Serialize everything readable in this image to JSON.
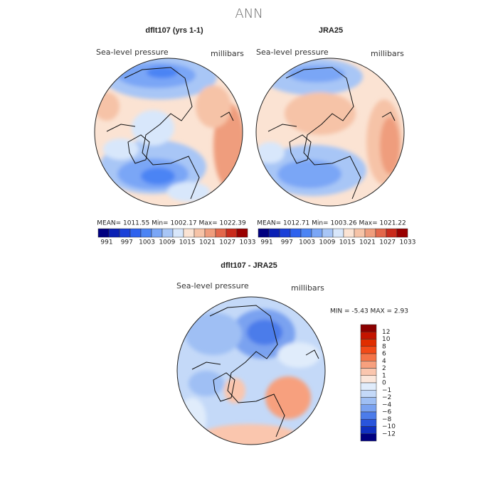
{
  "header": {
    "title": "ANN"
  },
  "panels": [
    {
      "title": "dflt107 (yrs 1-1)",
      "field": "Sea-level pressure",
      "units": "millibars",
      "stats": "MEAN=  1011.55   Min=  1002.17   Max=  1022.39",
      "colorbar": {
        "labels": [
          "991",
          "997",
          "1003",
          "1009",
          "1015",
          "1021",
          "1027",
          "1033"
        ],
        "colors": [
          "#000080",
          "#0a20b4",
          "#1a40d8",
          "#2e62ee",
          "#4c84f4",
          "#7aa6f6",
          "#a8c6f6",
          "#d8e7fb",
          "#fbe3d3",
          "#f6c3a7",
          "#ef9d7d",
          "#e3674b",
          "#c92b1c",
          "#990000"
        ]
      }
    },
    {
      "title": "JRA25",
      "field": "Sea-level pressure",
      "units": "millibars",
      "stats": "MEAN=  1012.71   Min=  1003.26   Max=  1021.22",
      "colorbar": {
        "labels": [
          "991",
          "997",
          "1003",
          "1009",
          "1015",
          "1021",
          "1027",
          "1033"
        ],
        "colors": [
          "#000080",
          "#0a20b4",
          "#1a40d8",
          "#2e62ee",
          "#4c84f4",
          "#7aa6f6",
          "#a8c6f6",
          "#d8e7fb",
          "#fbe3d3",
          "#f6c3a7",
          "#ef9d7d",
          "#e3674b",
          "#c92b1c",
          "#990000"
        ]
      }
    },
    {
      "title": "dflt107 - JRA25",
      "field": "Sea-level pressure",
      "units": "millibars",
      "stats": "MIN =    -5.43  MAX =     2.93",
      "colorbar": {
        "labels": [
          "12",
          "10",
          "8",
          "6",
          "4",
          "2",
          "1",
          "0",
          "−1",
          "−2",
          "−4",
          "−6",
          "−8",
          "−10",
          "−12"
        ],
        "colors": [
          "#8b0000",
          "#c41400",
          "#e02e00",
          "#f24a18",
          "#f47448",
          "#f7a07e",
          "#fac6ae",
          "#fbe6da",
          "#e0ecfb",
          "#c4d9f8",
          "#9fbff4",
          "#7aa2f0",
          "#4c7cea",
          "#2a55dc",
          "#1030c0",
          "#000080"
        ]
      }
    }
  ]
}
